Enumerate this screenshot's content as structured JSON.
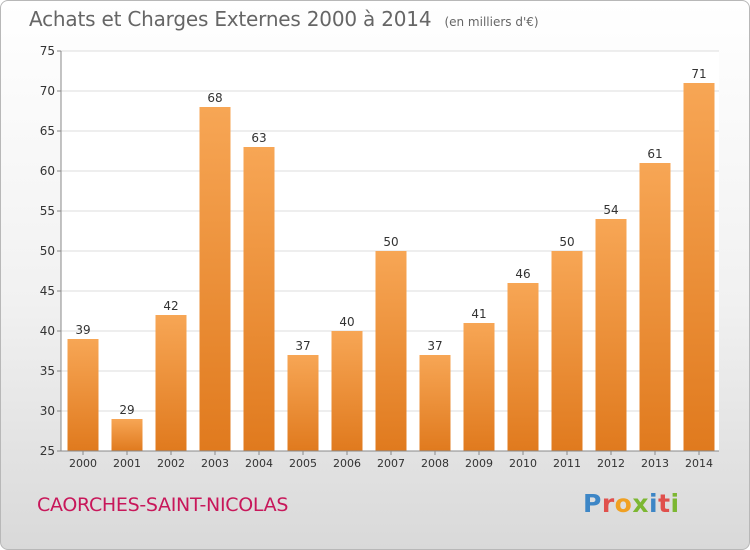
{
  "header": {
    "title": "Achats et Charges Externes 2000 à 2014",
    "subtitle": "(en milliers d'€)"
  },
  "footer": {
    "commune": "CAORCHES-SAINT-NICOLAS",
    "logo_text": "Proxiti",
    "logo_colors": [
      "#3d86c6",
      "#e0504c",
      "#f0a022",
      "#7cb732",
      "#3d86c6",
      "#e0504c",
      "#7cb732"
    ]
  },
  "colors": {
    "bar_top": "#f7a655",
    "bar_bottom": "#e07a1e",
    "grid": "#dddddd",
    "axis": "#888888",
    "text": "#333333",
    "brand": "#c8175a"
  },
  "chart_data": {
    "type": "bar",
    "categories": [
      "2000",
      "2001",
      "2002",
      "2003",
      "2004",
      "2005",
      "2006",
      "2007",
      "2008",
      "2009",
      "2010",
      "2011",
      "2012",
      "2013",
      "2014"
    ],
    "values": [
      39,
      29,
      42,
      68,
      63,
      37,
      40,
      50,
      37,
      41,
      46,
      50,
      54,
      61,
      71
    ],
    "title": "Achats et Charges Externes 2000 à 2014",
    "subtitle": "(en milliers d'€)",
    "xlabel": "",
    "ylabel": "",
    "ylim": [
      25,
      75
    ],
    "yticks": [
      25,
      30,
      35,
      40,
      45,
      50,
      55,
      60,
      65,
      70,
      75
    ],
    "grid": true,
    "data_labels": true
  }
}
